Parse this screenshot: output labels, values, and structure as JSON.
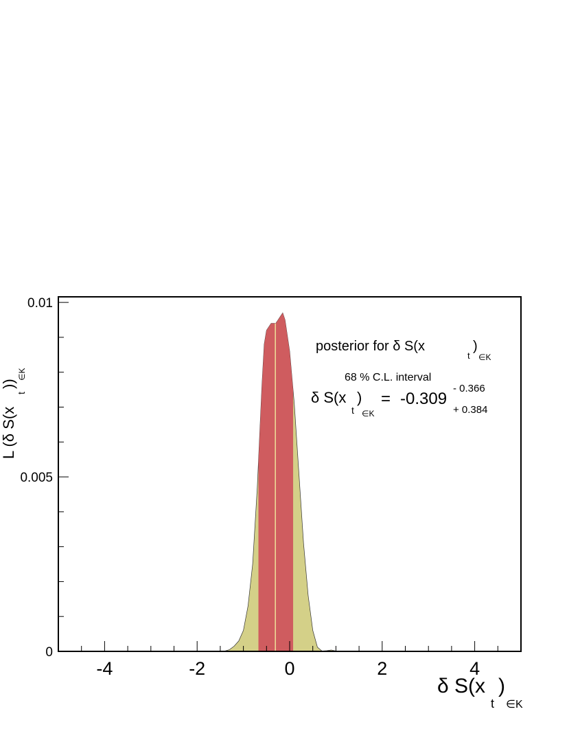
{
  "chart_data": {
    "type": "area",
    "x_label": {
      "main": "δ S(x",
      "sub": "t",
      "close": ")",
      "subsub": "∈K"
    },
    "y_label": {
      "main": "L (δ S(x",
      "sub": "t",
      "close": "))",
      "subsub": "∈K"
    },
    "title": {
      "main": "posterior for  δ S(x",
      "sub": "t",
      "close": ")",
      "subsub": "∈K"
    },
    "annotation": {
      "heading": "68 % C.L. interval",
      "main": "δ S(x",
      "sub": "t",
      "close": ")",
      "subsub": "∈K",
      "equals": "=",
      "central": -0.309,
      "minus_error": {
        "value": 0.366,
        "label": "- 0.366"
      },
      "plus_error": {
        "value": 0.384,
        "label": "+ 0.384"
      }
    },
    "series": [
      {
        "color": "#d4d088",
        "interval_color": "#cf5c5f",
        "central_color": "#efe29a",
        "x": [
          -1.5,
          -1.4,
          -1.3,
          -1.2,
          -1.1,
          -1.0,
          -0.9,
          -0.8,
          -0.7,
          -0.6,
          -0.55,
          -0.5,
          -0.4,
          -0.3,
          -0.25,
          -0.2,
          -0.15,
          -0.1,
          0.0,
          0.1,
          0.2,
          0.3,
          0.4,
          0.5,
          0.6,
          0.7,
          0.8,
          0.9,
          1.0,
          1.1
        ],
        "values": [
          0,
          1e-05,
          5e-05,
          0.00015,
          0.0003,
          0.0006,
          0.0013,
          0.0025,
          0.0047,
          0.0076,
          0.0088,
          0.0092,
          0.0094,
          0.0094,
          0.0095,
          0.0096,
          0.0097,
          0.0095,
          0.0086,
          0.0071,
          0.0051,
          0.0031,
          0.0016,
          0.0006,
          0.00012,
          1e-05,
          2e-05,
          4e-05,
          1e-05,
          0
        ]
      }
    ],
    "xlim": [
      -5,
      5
    ],
    "xticks": [
      -4,
      -2,
      0,
      2,
      4
    ],
    "xminorticks": [
      -4.5,
      -3.5,
      -3,
      -2.5,
      -1.5,
      -1,
      -0.5,
      0.5,
      1,
      1.5,
      2.5,
      3,
      3.5,
      4.5
    ],
    "ylim": [
      0,
      0.01016
    ],
    "yticks": [
      0,
      0.005,
      0.01
    ],
    "yminorticks": [
      0.001,
      0.002,
      0.003,
      0.004,
      0.006,
      0.007,
      0.008,
      0.009
    ]
  }
}
